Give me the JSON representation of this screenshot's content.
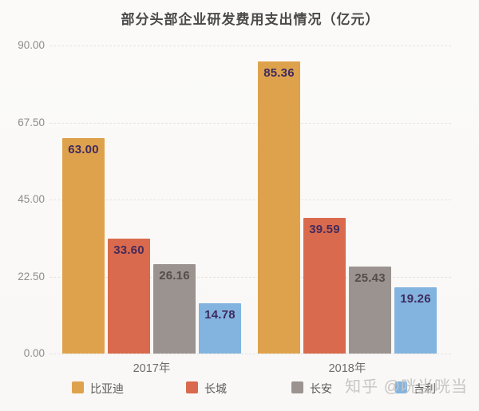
{
  "title": "部分头部企业研发费用支出情况（亿元）",
  "watermark": "知乎 @咣当咣当",
  "chart_data": {
    "type": "bar",
    "title": "部分头部企业研发费用支出情况（亿元）",
    "categories": [
      "2017年",
      "2018年"
    ],
    "series": [
      {
        "name": "比亚迪",
        "color": "#dfa24c",
        "label_color": "#3e2b5f",
        "values": [
          63.0,
          85.36
        ]
      },
      {
        "name": "长城",
        "color": "#d96a4d",
        "label_color": "#452a5a",
        "values": [
          33.6,
          39.59
        ]
      },
      {
        "name": "长安",
        "color": "#9a938f",
        "label_color": "#534e4a",
        "values": [
          26.16,
          25.43
        ]
      },
      {
        "name": "吉利",
        "color": "#83b4df",
        "label_color": "#3e2b5f",
        "values": [
          14.78,
          19.26
        ]
      }
    ],
    "xlabel": "",
    "ylabel": "",
    "ylim": [
      0,
      90
    ],
    "yticks": [
      "0.00",
      "22.50",
      "45.00",
      "67.50",
      "90.00"
    ],
    "grid": true,
    "legend_position": "bottom",
    "value_label_format": "2dp"
  }
}
